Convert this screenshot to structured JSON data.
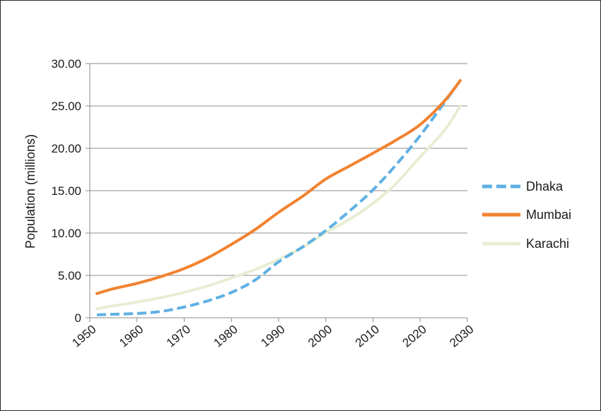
{
  "chart_data": {
    "type": "line",
    "title": "",
    "xlabel": "",
    "ylabel": "Population (millions)",
    "xlim": [
      1950,
      2030
    ],
    "ylim": [
      0,
      30
    ],
    "y_ticks": [
      "0",
      "5.00",
      "10.00",
      "15.00",
      "20.00",
      "25.00",
      "30.00"
    ],
    "y_tick_values": [
      0,
      5,
      10,
      15,
      20,
      25,
      30
    ],
    "x_ticks": [
      "1950",
      "1960",
      "1970",
      "1980",
      "1990",
      "2000",
      "2010",
      "2020",
      "2030"
    ],
    "x_tick_values": [
      1950,
      1960,
      1970,
      1980,
      1990,
      2000,
      2010,
      2020,
      2030
    ],
    "grid": true,
    "legend_position": "right",
    "x": [
      1950,
      1955,
      1960,
      1965,
      1970,
      1975,
      1980,
      1985,
      1990,
      1995,
      2000,
      2005,
      2010,
      2015,
      2020,
      2025,
      2030
    ],
    "series": [
      {
        "name": "Dhaka",
        "color": "#5fb0e3",
        "style": "dashed",
        "values": [
          0.34,
          0.42,
          0.51,
          0.74,
          1.27,
          2.0,
          2.99,
          4.44,
          6.6,
          8.33,
          10.29,
          12.58,
          15.09,
          18.12,
          21.5,
          25.3,
          28.0
        ]
      },
      {
        "name": "Mumbai",
        "color": "#f28230",
        "style": "solid",
        "values": [
          2.86,
          3.43,
          4.06,
          4.85,
          5.81,
          7.08,
          8.66,
          10.4,
          12.44,
          14.3,
          16.37,
          17.9,
          19.42,
          21.0,
          22.8,
          25.5,
          28.0
        ]
      },
      {
        "name": "Karachi",
        "color": "#e7eed3",
        "style": "solid",
        "values": [
          1.06,
          1.42,
          1.85,
          2.37,
          3.0,
          3.76,
          4.7,
          5.68,
          6.9,
          8.27,
          10.05,
          11.6,
          13.5,
          15.9,
          19.0,
          22.0,
          25.0
        ]
      }
    ]
  }
}
